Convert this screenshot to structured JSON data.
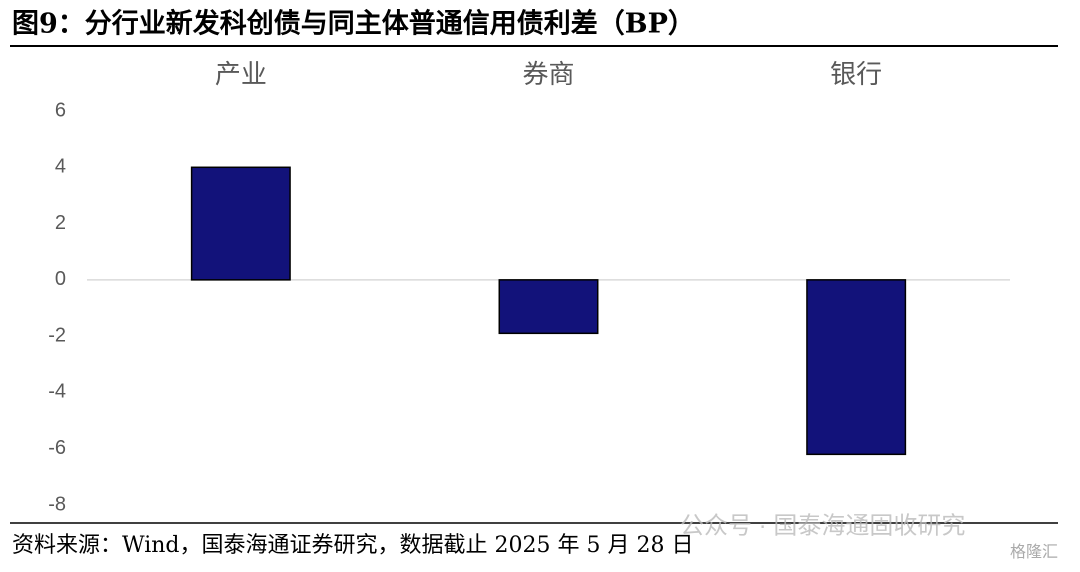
{
  "chart_data": {
    "type": "bar",
    "title": "图9：分行业新发科创债与同主体普通信用债利差（BP）",
    "categories": [
      "产业",
      "券商",
      "银行"
    ],
    "values": [
      4.0,
      -1.9,
      -6.2
    ],
    "color": "#12127a",
    "ylim": [
      -8,
      6
    ],
    "yticks": [
      6,
      4,
      2,
      0,
      -2,
      -4,
      -6,
      -8
    ],
    "grid": false,
    "source": "资料来源：Wind，国泰海通证券研究，数据截止 2025 年 5 月 28 日",
    "watermark": "公众号 · 国泰海通固收研究",
    "logo": "格隆汇"
  }
}
